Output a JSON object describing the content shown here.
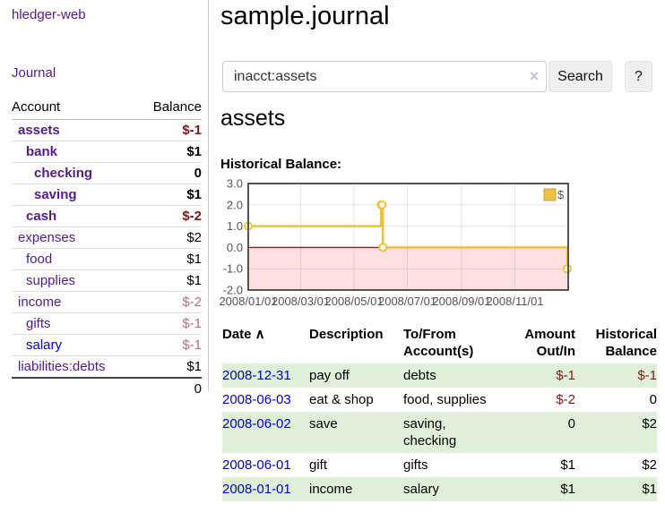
{
  "app": {
    "title": "hledger-web"
  },
  "sidebar": {
    "journal_link": "Journal",
    "accounts_table": {
      "account_header": "Account",
      "balance_header": "Balance",
      "rows": [
        {
          "name": "assets",
          "balance": "$-1",
          "level": 0,
          "bold": true,
          "negative": true,
          "muted_negative": false,
          "unvisited": false
        },
        {
          "name": "bank",
          "balance": "$1",
          "level": 1,
          "bold": true,
          "negative": false,
          "muted_negative": false,
          "unvisited": false
        },
        {
          "name": "checking",
          "balance": "0",
          "level": 2,
          "bold": true,
          "negative": false,
          "muted_negative": false,
          "unvisited": false
        },
        {
          "name": "saving",
          "balance": "$1",
          "level": 2,
          "bold": true,
          "negative": false,
          "muted_negative": false,
          "unvisited": false
        },
        {
          "name": "cash",
          "balance": "$-2",
          "level": 1,
          "bold": true,
          "negative": true,
          "muted_negative": false,
          "unvisited": false
        },
        {
          "name": "expenses",
          "balance": "$2",
          "level": 0,
          "bold": false,
          "negative": false,
          "muted_negative": false,
          "unvisited": false
        },
        {
          "name": "food",
          "balance": "$1",
          "level": 1,
          "bold": false,
          "negative": false,
          "muted_negative": false,
          "unvisited": false
        },
        {
          "name": "supplies",
          "balance": "$1",
          "level": 1,
          "bold": false,
          "negative": false,
          "muted_negative": false,
          "unvisited": false
        },
        {
          "name": "income",
          "balance": "$-2",
          "level": 0,
          "bold": false,
          "negative": false,
          "muted_negative": true,
          "unvisited": false
        },
        {
          "name": "gifts",
          "balance": "$-1",
          "level": 1,
          "bold": false,
          "negative": false,
          "muted_negative": true,
          "unvisited": false
        },
        {
          "name": "salary",
          "balance": "$-1",
          "level": 1,
          "bold": false,
          "negative": false,
          "muted_negative": true,
          "unvisited": true
        },
        {
          "name": "liabilities:debts",
          "balance": "$1",
          "level": 0,
          "bold": false,
          "negative": false,
          "muted_negative": false,
          "unvisited": false
        }
      ],
      "total": "0"
    }
  },
  "header": {
    "title": "sample.journal"
  },
  "search": {
    "query": "inacct:assets",
    "clear_icon": "×",
    "button_label": "Search",
    "help_label": "?"
  },
  "account_page": {
    "heading": "assets",
    "chart_title": "Historical Balance:"
  },
  "chart_data": {
    "type": "line",
    "step": true,
    "title": "Historical Balance:",
    "legend": [
      {
        "label": "$",
        "color": "#edc240"
      }
    ],
    "legend_position": "top-right",
    "x": [
      "2008-01-01",
      "2008-06-01",
      "2008-06-02",
      "2008-06-03",
      "2008-12-31"
    ],
    "values": [
      1,
      2,
      2,
      0,
      -1
    ],
    "xlim": [
      "2008-01-01",
      "2009-01-01"
    ],
    "ylim": [
      -2,
      3
    ],
    "yticks": [
      3,
      2,
      1,
      0,
      -1,
      -2
    ],
    "xtick_labels": [
      "2008/01/01",
      "2008/03/01",
      "2008/05/01",
      "2008/07/01",
      "2008/09/01",
      "2008/11/01"
    ],
    "grid": true,
    "line_color": "#edc240",
    "marker_fill": "#ffffff",
    "zero_line_color": "#8b2222",
    "negative_region_fill": "rgba(255,0,0,0.12)",
    "border_color": "#545454",
    "tick_label_color": "#545454",
    "gridline_color": "#e5e5e5"
  },
  "register": {
    "headers": [
      {
        "label": "Date",
        "sort": "∧",
        "align": "left"
      },
      {
        "label": "Description",
        "align": "left"
      },
      {
        "label": "To/From Account(s)",
        "align": "left"
      },
      {
        "label": "Amount Out/In",
        "align": "right"
      },
      {
        "label": "Historical Balance",
        "align": "right"
      }
    ],
    "rows": [
      {
        "date": "2008-12-31",
        "description": "pay off",
        "accounts": "debts",
        "amount": "$-1",
        "balance": "$-1",
        "amount_negative": true,
        "balance_negative": true,
        "shaded": true
      },
      {
        "date": "2008-06-03",
        "description": "eat & shop",
        "accounts": "food, supplies",
        "amount": "$-2",
        "balance": "0",
        "amount_negative": true,
        "balance_negative": false,
        "shaded": false
      },
      {
        "date": "2008-06-02",
        "description": "save",
        "accounts": "saving, checking",
        "amount": "0",
        "balance": "$2",
        "amount_negative": false,
        "balance_negative": false,
        "shaded": true
      },
      {
        "date": "2008-06-01",
        "description": "gift",
        "accounts": "gifts",
        "amount": "$1",
        "balance": "$2",
        "amount_negative": false,
        "balance_negative": false,
        "shaded": false
      },
      {
        "date": "2008-01-01",
        "description": "income",
        "accounts": "salary",
        "amount": "$1",
        "balance": "$1",
        "amount_negative": false,
        "balance_negative": false,
        "shaded": true
      }
    ]
  }
}
